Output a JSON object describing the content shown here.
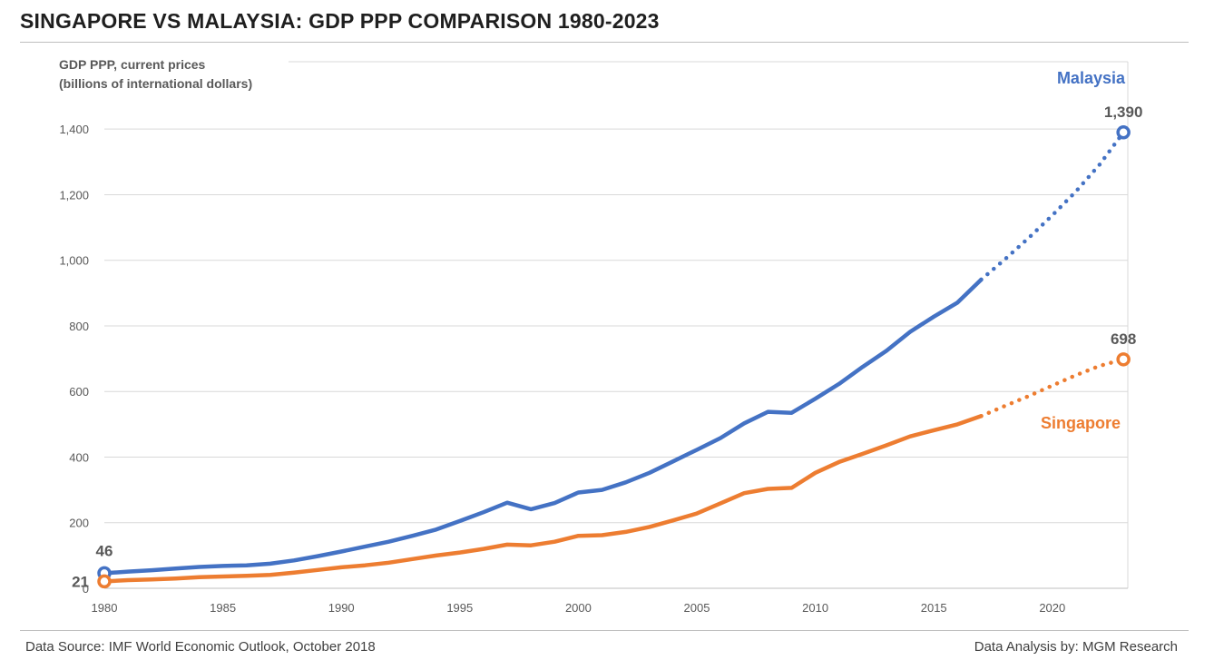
{
  "header": {
    "title": "SINGAPORE VS MALAYSIA: GDP PPP COMPARISON 1980-2023"
  },
  "footer": {
    "source": "Data Source: IMF World Economic Outlook, October 2018",
    "analysis": "Data Analysis by: MGM Research"
  },
  "chart_data": {
    "type": "line",
    "title": "SINGAPORE VS MALAYSIA: GDP PPP COMPARISON 1980-2023",
    "ylabel_line1": "GDP PPP, current prices",
    "ylabel_line2": "(billions of international dollars)",
    "xlabel": "",
    "xlim": [
      1980,
      2023.5
    ],
    "ylim": [
      0,
      1500
    ],
    "yticks": [
      0,
      200,
      400,
      600,
      800,
      1000,
      1200,
      1400
    ],
    "ytick_labels": [
      "0",
      "200",
      "400",
      "600",
      "800",
      "1,000",
      "1,200",
      "1,400"
    ],
    "xticks": [
      1980,
      1985,
      1990,
      1995,
      2000,
      2005,
      2010,
      2015,
      2020
    ],
    "xtick_labels": [
      "1980",
      "1985",
      "1990",
      "1995",
      "2000",
      "2005",
      "2010",
      "2015",
      "2020"
    ],
    "grid": true,
    "actual_until": 2017,
    "projection_style": "dotted",
    "series": [
      {
        "name": "Malaysia",
        "color": "#4472C4",
        "start_label": "46",
        "end_label": "1,390",
        "x": [
          1980,
          1981,
          1982,
          1983,
          1984,
          1985,
          1986,
          1987,
          1988,
          1989,
          1990,
          1991,
          1992,
          1993,
          1994,
          1995,
          1996,
          1997,
          1998,
          1999,
          2000,
          2001,
          2002,
          2003,
          2004,
          2005,
          2006,
          2007,
          2008,
          2009,
          2010,
          2011,
          2012,
          2013,
          2014,
          2015,
          2016,
          2017,
          2018,
          2019,
          2020,
          2021,
          2022,
          2023
        ],
        "values": [
          46,
          51,
          55,
          60,
          65,
          68,
          70,
          75,
          85,
          98,
          112,
          127,
          142,
          160,
          179,
          205,
          232,
          261,
          241,
          260,
          292,
          300,
          323,
          352,
          387,
          422,
          458,
          503,
          538,
          535,
          578,
          623,
          675,
          724,
          782,
          828,
          871,
          941,
          1003,
          1068,
          1137,
          1210,
          1292,
          1390
        ]
      },
      {
        "name": "Singapore",
        "color": "#ED7D31",
        "start_label": "21",
        "end_label": "698",
        "x": [
          1980,
          1981,
          1982,
          1983,
          1984,
          1985,
          1986,
          1987,
          1988,
          1989,
          1990,
          1991,
          1992,
          1993,
          1994,
          1995,
          1996,
          1997,
          1998,
          1999,
          2000,
          2001,
          2002,
          2003,
          2004,
          2005,
          2006,
          2007,
          2008,
          2009,
          2010,
          2011,
          2012,
          2013,
          2014,
          2015,
          2016,
          2017,
          2018,
          2019,
          2020,
          2021,
          2022,
          2023
        ],
        "values": [
          21,
          25,
          27,
          30,
          34,
          36,
          38,
          41,
          48,
          56,
          64,
          70,
          78,
          89,
          100,
          109,
          120,
          133,
          131,
          142,
          160,
          162,
          172,
          187,
          207,
          228,
          259,
          290,
          303,
          306,
          352,
          385,
          410,
          436,
          463,
          482,
          500,
          525,
          556,
          586,
          618,
          650,
          678,
          698
        ]
      }
    ]
  }
}
